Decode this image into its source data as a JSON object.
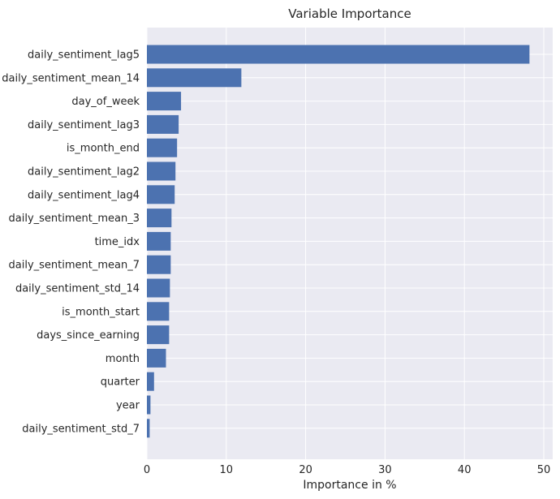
{
  "chart_data": {
    "type": "bar",
    "orientation": "horizontal",
    "title": "Variable Importance",
    "xlabel": "Importance in %",
    "ylabel": "",
    "xlim": [
      0,
      50.5
    ],
    "xticks": [
      0,
      10,
      20,
      30,
      40,
      50
    ],
    "grid": true,
    "colors": {
      "bar": "#4C72B0",
      "plot_bg": "#EAEAF2",
      "grid": "#FFFFFF",
      "text": "#262626"
    },
    "categories": [
      "daily_sentiment_lag5",
      "daily_sentiment_mean_14",
      "day_of_week",
      "daily_sentiment_lag3",
      "is_month_end",
      "daily_sentiment_lag2",
      "daily_sentiment_lag4",
      "daily_sentiment_mean_3",
      "time_idx",
      "daily_sentiment_mean_7",
      "daily_sentiment_std_14",
      "is_month_start",
      "days_since_earning",
      "month",
      "quarter",
      "year",
      "daily_sentiment_std_7"
    ],
    "values": [
      48.2,
      11.9,
      4.3,
      4.0,
      3.8,
      3.6,
      3.5,
      3.1,
      3.0,
      3.0,
      2.9,
      2.8,
      2.8,
      2.4,
      0.9,
      0.45,
      0.35
    ]
  }
}
